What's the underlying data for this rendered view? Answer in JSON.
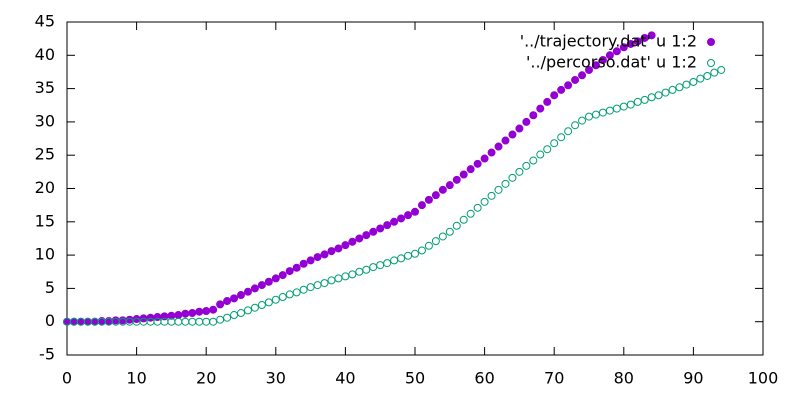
{
  "chart_data": {
    "type": "scatter",
    "xlim": [
      0,
      100
    ],
    "xticks": [
      0,
      10,
      20,
      30,
      40,
      50,
      60,
      70,
      80,
      90,
      100
    ],
    "ylim": [
      -5,
      45
    ],
    "yticks": [
      -5,
      0,
      5,
      10,
      15,
      20,
      25,
      30,
      35,
      40,
      45
    ],
    "legend": "top-right",
    "series": [
      {
        "name": "'../trajectory.dat' u 1:2",
        "color": "#9400d3",
        "marker": "filled",
        "x": [
          0,
          1,
          2,
          3,
          4,
          5,
          6,
          7,
          8,
          9,
          10,
          11,
          12,
          13,
          14,
          15,
          16,
          17,
          18,
          19,
          20,
          21,
          22,
          23,
          24,
          25,
          26,
          27,
          28,
          29,
          30,
          31,
          32,
          33,
          34,
          35,
          36,
          37,
          38,
          39,
          40,
          41,
          42,
          43,
          44,
          45,
          46,
          47,
          48,
          49,
          50,
          51,
          52,
          53,
          54,
          55,
          56,
          57,
          58,
          59,
          60,
          61,
          62,
          63,
          64,
          65,
          66,
          67,
          68,
          69,
          70,
          71,
          72,
          73,
          74,
          75,
          76,
          77,
          78,
          79,
          80,
          81,
          82,
          83,
          84
        ],
        "values": [
          0,
          0,
          0,
          0,
          0,
          0.1,
          0.1,
          0.2,
          0.2,
          0.3,
          0.4,
          0.5,
          0.6,
          0.7,
          0.8,
          0.9,
          1.0,
          1.2,
          1.3,
          1.5,
          1.6,
          1.8,
          2.6,
          3.1,
          3.5,
          4.0,
          4.5,
          5.0,
          5.5,
          6.0,
          6.5,
          7.0,
          7.6,
          8.1,
          8.7,
          9.2,
          9.7,
          10.1,
          10.6,
          11.0,
          11.5,
          12.0,
          12.5,
          13.0,
          13.5,
          14.0,
          14.5,
          15.0,
          15.5,
          16.0,
          16.5,
          17.5,
          18.3,
          19.0,
          19.8,
          20.5,
          21.3,
          22.1,
          22.9,
          23.7,
          24.5,
          25.4,
          26.3,
          27.2,
          28.1,
          29.0,
          30.0,
          31.0,
          32.0,
          33.0,
          34.0,
          34.8,
          35.5,
          36.3,
          37.0,
          37.8,
          38.5,
          39.3,
          40.0,
          40.6,
          41.2,
          41.7,
          42.1,
          42.6,
          43.0
        ]
      },
      {
        "name": "'../percorso.dat' u 1:2",
        "color": "#009e73",
        "marker": "open",
        "x": [
          0,
          1,
          2,
          3,
          4,
          5,
          6,
          7,
          8,
          9,
          10,
          11,
          12,
          13,
          14,
          15,
          16,
          17,
          18,
          19,
          20,
          21,
          22,
          23,
          24,
          25,
          26,
          27,
          28,
          29,
          30,
          31,
          32,
          33,
          34,
          35,
          36,
          37,
          38,
          39,
          40,
          41,
          42,
          43,
          44,
          45,
          46,
          47,
          48,
          49,
          50,
          51,
          52,
          53,
          54,
          55,
          56,
          57,
          58,
          59,
          60,
          61,
          62,
          63,
          64,
          65,
          66,
          67,
          68,
          69,
          70,
          71,
          72,
          73,
          74,
          75,
          76,
          77,
          78,
          79,
          80,
          81,
          82,
          83,
          84,
          85,
          86,
          87,
          88,
          89,
          90,
          91,
          92,
          93,
          94
        ],
        "values": [
          0,
          0,
          0,
          0,
          0,
          0,
          0,
          0,
          0,
          0,
          0,
          0,
          0,
          0,
          0,
          0,
          0,
          0,
          0,
          0,
          0,
          0,
          0.3,
          0.6,
          1.0,
          1.3,
          1.7,
          2.1,
          2.5,
          2.9,
          3.3,
          3.7,
          4.1,
          4.4,
          4.8,
          5.2,
          5.5,
          5.8,
          6.2,
          6.5,
          6.8,
          7.1,
          7.5,
          7.8,
          8.2,
          8.5,
          8.8,
          9.2,
          9.5,
          9.9,
          10.2,
          10.7,
          11.4,
          12.1,
          12.8,
          13.5,
          14.4,
          15.3,
          16.2,
          17.1,
          18.0,
          18.9,
          19.8,
          20.7,
          21.6,
          22.5,
          23.4,
          24.2,
          25.1,
          25.9,
          26.8,
          27.7,
          28.6,
          29.5,
          30.2,
          30.8,
          31.1,
          31.4,
          31.7,
          32.0,
          32.3,
          32.6,
          33.0,
          33.3,
          33.7,
          34.0,
          34.4,
          34.8,
          35.2,
          35.6,
          36.0,
          36.5,
          36.9,
          37.4,
          37.8
        ]
      }
    ]
  }
}
